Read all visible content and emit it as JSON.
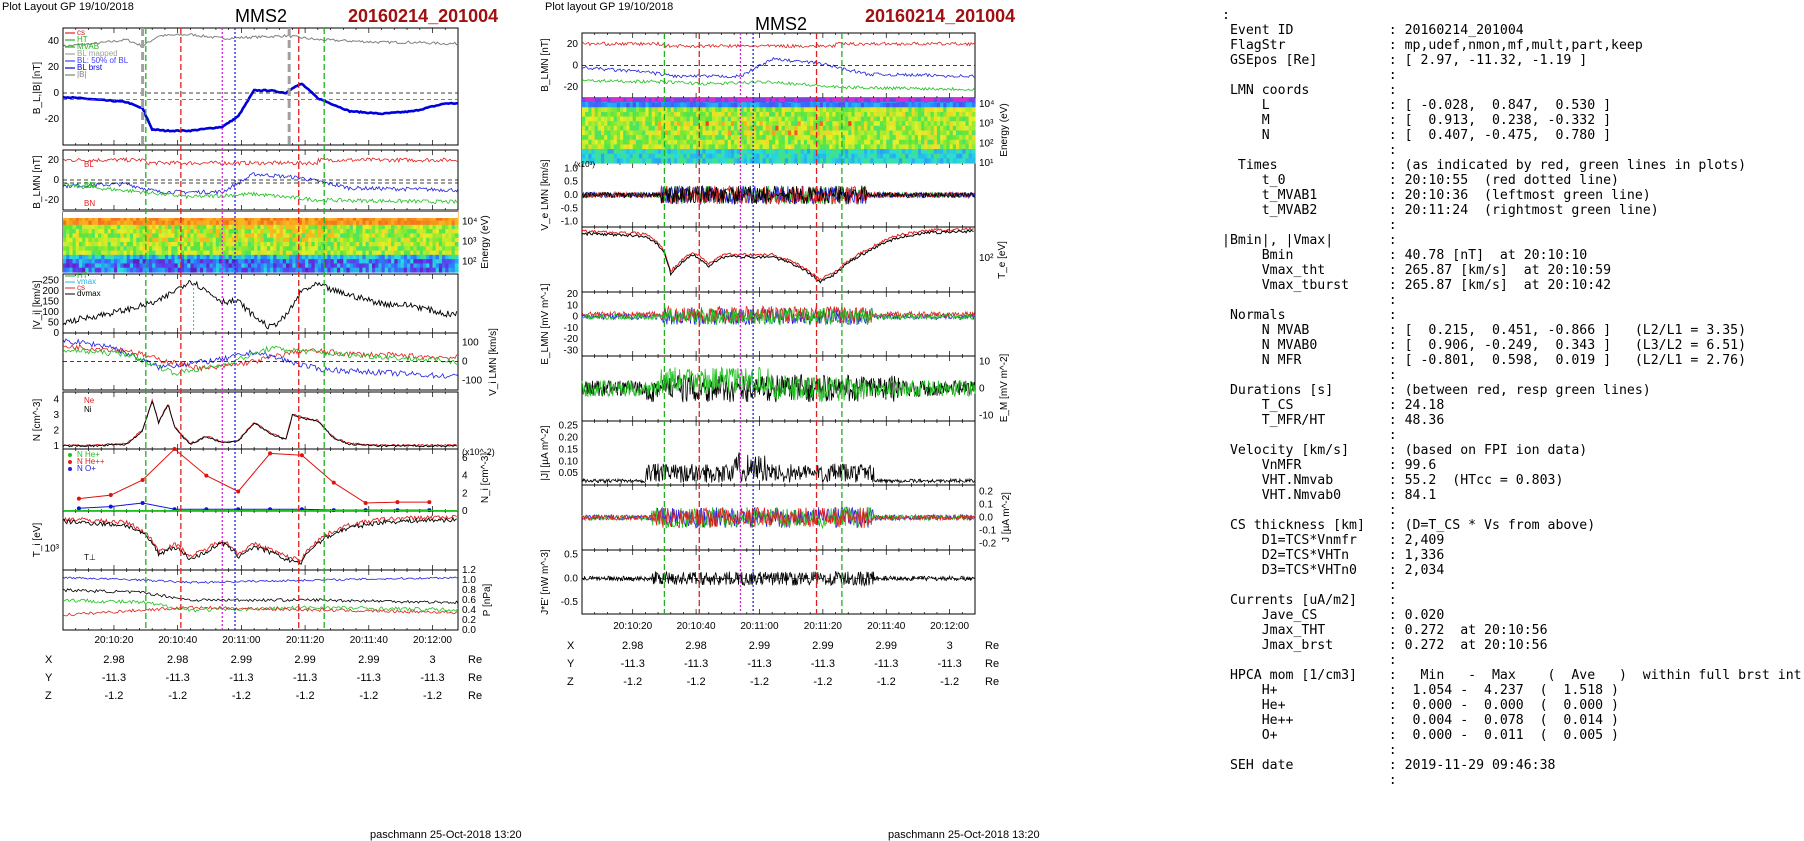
{
  "left": {
    "header": "Plot Layout GP 19/10/2018",
    "title": "MMS2",
    "event": "20160214_201004",
    "footer": "paschmann 25-Oct-2018 13:20",
    "ylabels": [
      "B_L,|B| [nT]",
      "B_LMN [nT]",
      "Energy (eV)",
      "|V_i| [km/s]",
      "V_i LMN [km/s]",
      "N [cm^-3]",
      "N_i [cm^-3]",
      "T_i [eV]",
      "P [nPa]"
    ],
    "xticks": [
      "20:10:20",
      "20:10:40",
      "20:11:00",
      "20:11:20",
      "20:11:40",
      "20:12:00"
    ],
    "coords": {
      "X": [
        "2.98",
        "2.98",
        "2.99",
        "2.99",
        "2.99",
        "3"
      ],
      "Y": [
        "-11.3",
        "-11.3",
        "-11.3",
        "-11.3",
        "-11.3",
        "-11.3"
      ],
      "Z": [
        "-1.2",
        "-1.2",
        "-1.2",
        "-1.2",
        "-1.2",
        "-1.2"
      ],
      "unit": "Re"
    }
  },
  "middle": {
    "header": "Plot layout GP 19/10/2018",
    "title": "MMS2",
    "event": "20160214_201004",
    "footer": "paschmann 25-Oct-2018 13:20",
    "ylabels": [
      "B_LMN [nT]",
      "Energy (eV)",
      "V_e LMN [km/s]",
      "T_e [eV]",
      "E_LMN [mV m^-1]",
      "E_M [mV m^-2]",
      "|J| [µA m^-2]",
      "J [µA m^-2]",
      "J*E' [nW m^-3]"
    ],
    "xticks": [
      "20:10:20",
      "20:10:40",
      "20:11:00",
      "20:11:20",
      "20:11:40",
      "20:12:00"
    ],
    "coords": {
      "X": [
        "2.98",
        "2.98",
        "2.99",
        "2.99",
        "2.99",
        "3"
      ],
      "Y": [
        "-11.3",
        "-11.3",
        "-11.3",
        "-11.3",
        "-11.3",
        "-11.3"
      ],
      "Z": [
        "-1.2",
        "-1.2",
        "-1.2",
        "-1.2",
        "-1.2",
        "-1.2"
      ],
      "unit": "Re"
    }
  },
  "chart_data": [
    {
      "type": "line",
      "title": "MMS2",
      "x_range": [
        "20:10:04",
        "20:12:08"
      ],
      "xticks": [
        "20:10:20",
        "20:10:40",
        "20:11:00",
        "20:11:20",
        "20:11:40",
        "20:12:00"
      ],
      "panels": [
        {
          "ylabel": "B_L,|B| [nT]",
          "ylim": [
            -40,
            50
          ],
          "legend": [
            "cs",
            "HT",
            "MVAB",
            "BL mapped",
            "BL: 50% of BL",
            "BL brst",
            "|B|"
          ],
          "series": [
            {
              "name": "|B|",
              "color": "#808080",
              "x": [
                0,
                10,
                20,
                25,
                30,
                40,
                50,
                60,
                70,
                80,
                90,
                100,
                110,
                120,
                124
              ],
              "y": [
                36,
                38,
                41,
                36,
                44,
                45,
                42,
                43,
                44,
                41,
                40,
                39,
                39,
                38,
                38
              ]
            },
            {
              "name": "BL brst",
              "color": "#0000dd",
              "x": [
                0,
                10,
                20,
                25,
                28,
                32,
                40,
                50,
                55,
                60,
                65,
                70,
                72,
                75,
                80,
                90,
                100,
                110,
                120,
                124
              ],
              "y": [
                -3,
                -5,
                -7,
                -12,
                -28,
                -29,
                -29,
                -26,
                -18,
                2,
                2,
                0,
                4,
                7,
                -4,
                -14,
                -16,
                -14,
                -8,
                -8
              ]
            }
          ]
        },
        {
          "ylabel": "B_LMN [nT]",
          "ylim": [
            -30,
            30
          ]
        },
        {
          "ylabel": "Energy (eV)",
          "ylim": [
            30,
            30000
          ],
          "scale": "log"
        },
        {
          "ylabel": "|V_i| [km/s]",
          "ylim": [
            0,
            280
          ],
          "legend": [
            "HT",
            "vmax",
            "cs",
            "dvmax"
          ],
          "series": [
            {
              "name": "|Vi|",
              "color": "#000000",
              "x": [
                0,
                10,
                20,
                30,
                35,
                40,
                45,
                50,
                55,
                60,
                65,
                70,
                75,
                80,
                85,
                90,
                100,
                110,
                120,
                124
              ],
              "y": [
                50,
                80,
                110,
                150,
                200,
                250,
                200,
                150,
                150,
                80,
                25,
                80,
                200,
                230,
                200,
                180,
                140,
                130,
                90,
                90
              ]
            }
          ]
        },
        {
          "ylabel": "V_i LMN [km/s]",
          "ylim": [
            -150,
            150
          ]
        },
        {
          "ylabel": "N [cm^-3]",
          "ylim": [
            0.8,
            4.5
          ],
          "legend": [
            "Ne",
            "Ni"
          ],
          "series": [
            {
              "name": "Ni",
              "color": "#000000",
              "x": [
                0,
                10,
                20,
                25,
                28,
                30,
                33,
                35,
                38,
                40,
                45,
                50,
                55,
                60,
                65,
                70,
                72,
                75,
                80,
                85,
                90,
                100,
                110,
                124
              ],
              "y": [
                1.0,
                1.0,
                1.1,
                2.0,
                3.9,
                2.5,
                3.7,
                2.2,
                1.5,
                1.1,
                1.6,
                1.2,
                1.3,
                2.5,
                1.8,
                1.4,
                3.0,
                2.8,
                2.6,
                1.5,
                1.1,
                1.0,
                1.0,
                1.0
              ]
            }
          ]
        },
        {
          "ylabel": "N_i [cm^-3]",
          "ylim": [
            0,
            7
          ],
          "unit_note": "(x10^-2)",
          "legend": [
            "N He+",
            "N He++",
            "N O+"
          ],
          "series": [
            {
              "name": "N He++",
              "color": "#e01010",
              "x": [
                5,
                15,
                25,
                35,
                45,
                55,
                65,
                75,
                85,
                95,
                105,
                115
              ],
              "y": [
                1.4,
                1.8,
                3.5,
                7.0,
                4.0,
                2.2,
                6.5,
                6.3,
                3.2,
                0.9,
                1.0,
                1.0
              ]
            },
            {
              "name": "N O+",
              "color": "#1010e0",
              "x": [
                5,
                15,
                25,
                35,
                45,
                55,
                65,
                75,
                85,
                95,
                105,
                115
              ],
              "y": [
                0.3,
                0.5,
                0.9,
                0.2,
                0.2,
                0.2,
                0.2,
                0.2,
                0.1,
                0.1,
                0.1,
                0.1
              ]
            }
          ]
        },
        {
          "ylabel": "T_i [eV]",
          "ylim": [
            300,
            8000
          ],
          "scale": "log"
        },
        {
          "ylabel": "P [nPa]",
          "ylim": [
            0,
            1.2
          ]
        }
      ]
    },
    {
      "type": "line",
      "title": "MMS2",
      "x_range": [
        "20:10:04",
        "20:12:08"
      ],
      "xticks": [
        "20:10:20",
        "20:10:40",
        "20:11:00",
        "20:11:20",
        "20:11:40",
        "20:12:00"
      ],
      "panels": [
        {
          "ylabel": "B_LMN [nT]",
          "ylim": [
            -30,
            30
          ]
        },
        {
          "ylabel": "Energy (eV)",
          "ylim": [
            10,
            20000
          ],
          "scale": "log"
        },
        {
          "ylabel": "V_e LMN [km/s]",
          "ylim": [
            -1.2,
            1.2
          ],
          "unit_note": "(x10^3)"
        },
        {
          "ylabel": "T_e [eV]",
          "ylim": [
            30,
            300
          ],
          "scale": "log"
        },
        {
          "ylabel": "E_LMN [mV m^-1]",
          "ylim": [
            -35,
            22
          ]
        },
        {
          "ylabel": "E_M [mV m^-2]",
          "ylim": [
            -12,
            12
          ]
        },
        {
          "ylabel": "|J| [µA m^-2]",
          "ylim": [
            0,
            0.27
          ]
        },
        {
          "ylabel": "J [µA m^-2]",
          "ylim": [
            -0.25,
            0.25
          ]
        },
        {
          "ylabel": "J*E' [nW m^-3]",
          "ylim": [
            -0.75,
            0.6
          ]
        }
      ]
    }
  ],
  "info": {
    "rows": [
      [
        ":",
        ""
      ],
      [
        " Event ID            ",
        ": 20160214_201004"
      ],
      [
        " FlagStr             ",
        ": mp,udef,nmon,mf,mult,part,keep"
      ],
      [
        " GSEpos [Re]         ",
        ": [ 2.97, -11.32, -1.19 ]"
      ],
      [
        "                     ",
        ":"
      ],
      [
        " LMN coords          ",
        ":"
      ],
      [
        "     L               ",
        ": [ -0.028,  0.847,  0.530 ]"
      ],
      [
        "     M               ",
        ": [  0.913,  0.238, -0.332 ]"
      ],
      [
        "     N               ",
        ": [  0.407, -0.475,  0.780 ]"
      ],
      [
        "                     ",
        ":"
      ],
      [
        "  Times              ",
        ": (as indicated by red, green lines in plots)"
      ],
      [
        "     t_0             ",
        ": 20:10:55  (red dotted line)"
      ],
      [
        "     t_MVAB1         ",
        ": 20:10:36  (leftmost green line)"
      ],
      [
        "     t_MVAB2         ",
        ": 20:11:24  (rightmost green line)"
      ],
      [
        "                     ",
        ":"
      ],
      [
        "|Bmin|, |Vmax|       ",
        ":"
      ],
      [
        "     Bmin            ",
        ": 40.78 [nT]  at 20:10:10"
      ],
      [
        "     Vmax_tht        ",
        ": 265.87 [km/s]  at 20:10:59"
      ],
      [
        "     Vmax_tburst     ",
        ": 265.87 [km/s]  at 20:10:42"
      ],
      [
        "                     ",
        ":"
      ],
      [
        " Normals             ",
        ":"
      ],
      [
        "     N MVAB          ",
        ": [  0.215,  0.451, -0.866 ]   (L2/L1 = 3.35)"
      ],
      [
        "     N MVAB0         ",
        ": [  0.906, -0.249,  0.343 ]   (L3/L2 = 6.51)"
      ],
      [
        "     N MFR           ",
        ": [ -0.801,  0.598,  0.019 ]   (L2/L1 = 2.76)"
      ],
      [
        "                     ",
        ":"
      ],
      [
        " Durations [s]       ",
        ": (between red, resp green lines)"
      ],
      [
        "     T_CS            ",
        ": 24.18"
      ],
      [
        "     T_MFR/HT        ",
        ": 48.36"
      ],
      [
        "                     ",
        ":"
      ],
      [
        " Velocity [km/s]     ",
        ": (based on FPI ion data)"
      ],
      [
        "     VnMFR           ",
        ": 99.6"
      ],
      [
        "     VHT.Nmvab       ",
        ": 55.2  (HTcc = 0.803)"
      ],
      [
        "     VHT.Nmvab0      ",
        ": 84.1"
      ],
      [
        "                     ",
        ":"
      ],
      [
        " CS thickness [km]   ",
        ": (D=T_CS * Vs from above)"
      ],
      [
        "     D1=TCS*Vnmfr    ",
        ": 2,409"
      ],
      [
        "     D2=TCS*VHTn     ",
        ": 1,336"
      ],
      [
        "     D3=TCS*VHTn0    ",
        ": 2,034"
      ],
      [
        "                     ",
        ":"
      ],
      [
        " Currents [uA/m2]    ",
        ":"
      ],
      [
        "     Jave_CS         ",
        ": 0.020"
      ],
      [
        "     Jmax_THT        ",
        ": 0.272  at 20:10:56"
      ],
      [
        "     Jmax_brst       ",
        ": 0.272  at 20:10:56"
      ],
      [
        "                     ",
        ":"
      ],
      [
        " HPCA mom [1/cm3]    ",
        ":   Min   -  Max    (  Ave   )  within full brst int"
      ],
      [
        "     H+              ",
        ":  1.054 -  4.237  (  1.518 )"
      ],
      [
        "     He+             ",
        ":  0.000 -  0.000  (  0.000 )"
      ],
      [
        "     He++            ",
        ":  0.004 -  0.078  (  0.014 )"
      ],
      [
        "     O+              ",
        ":  0.000 -  0.011  (  0.005 )"
      ],
      [
        "                     ",
        ":"
      ],
      [
        " SEH date            ",
        ": 2019-11-29 09:46:38"
      ],
      [
        "                     ",
        ":"
      ]
    ]
  },
  "colors": {
    "event": "#a01010",
    "red_line": "#e02020",
    "green_line": "#20b020",
    "magenta_line": "#d020d0",
    "blue_line": "#2020e0"
  }
}
